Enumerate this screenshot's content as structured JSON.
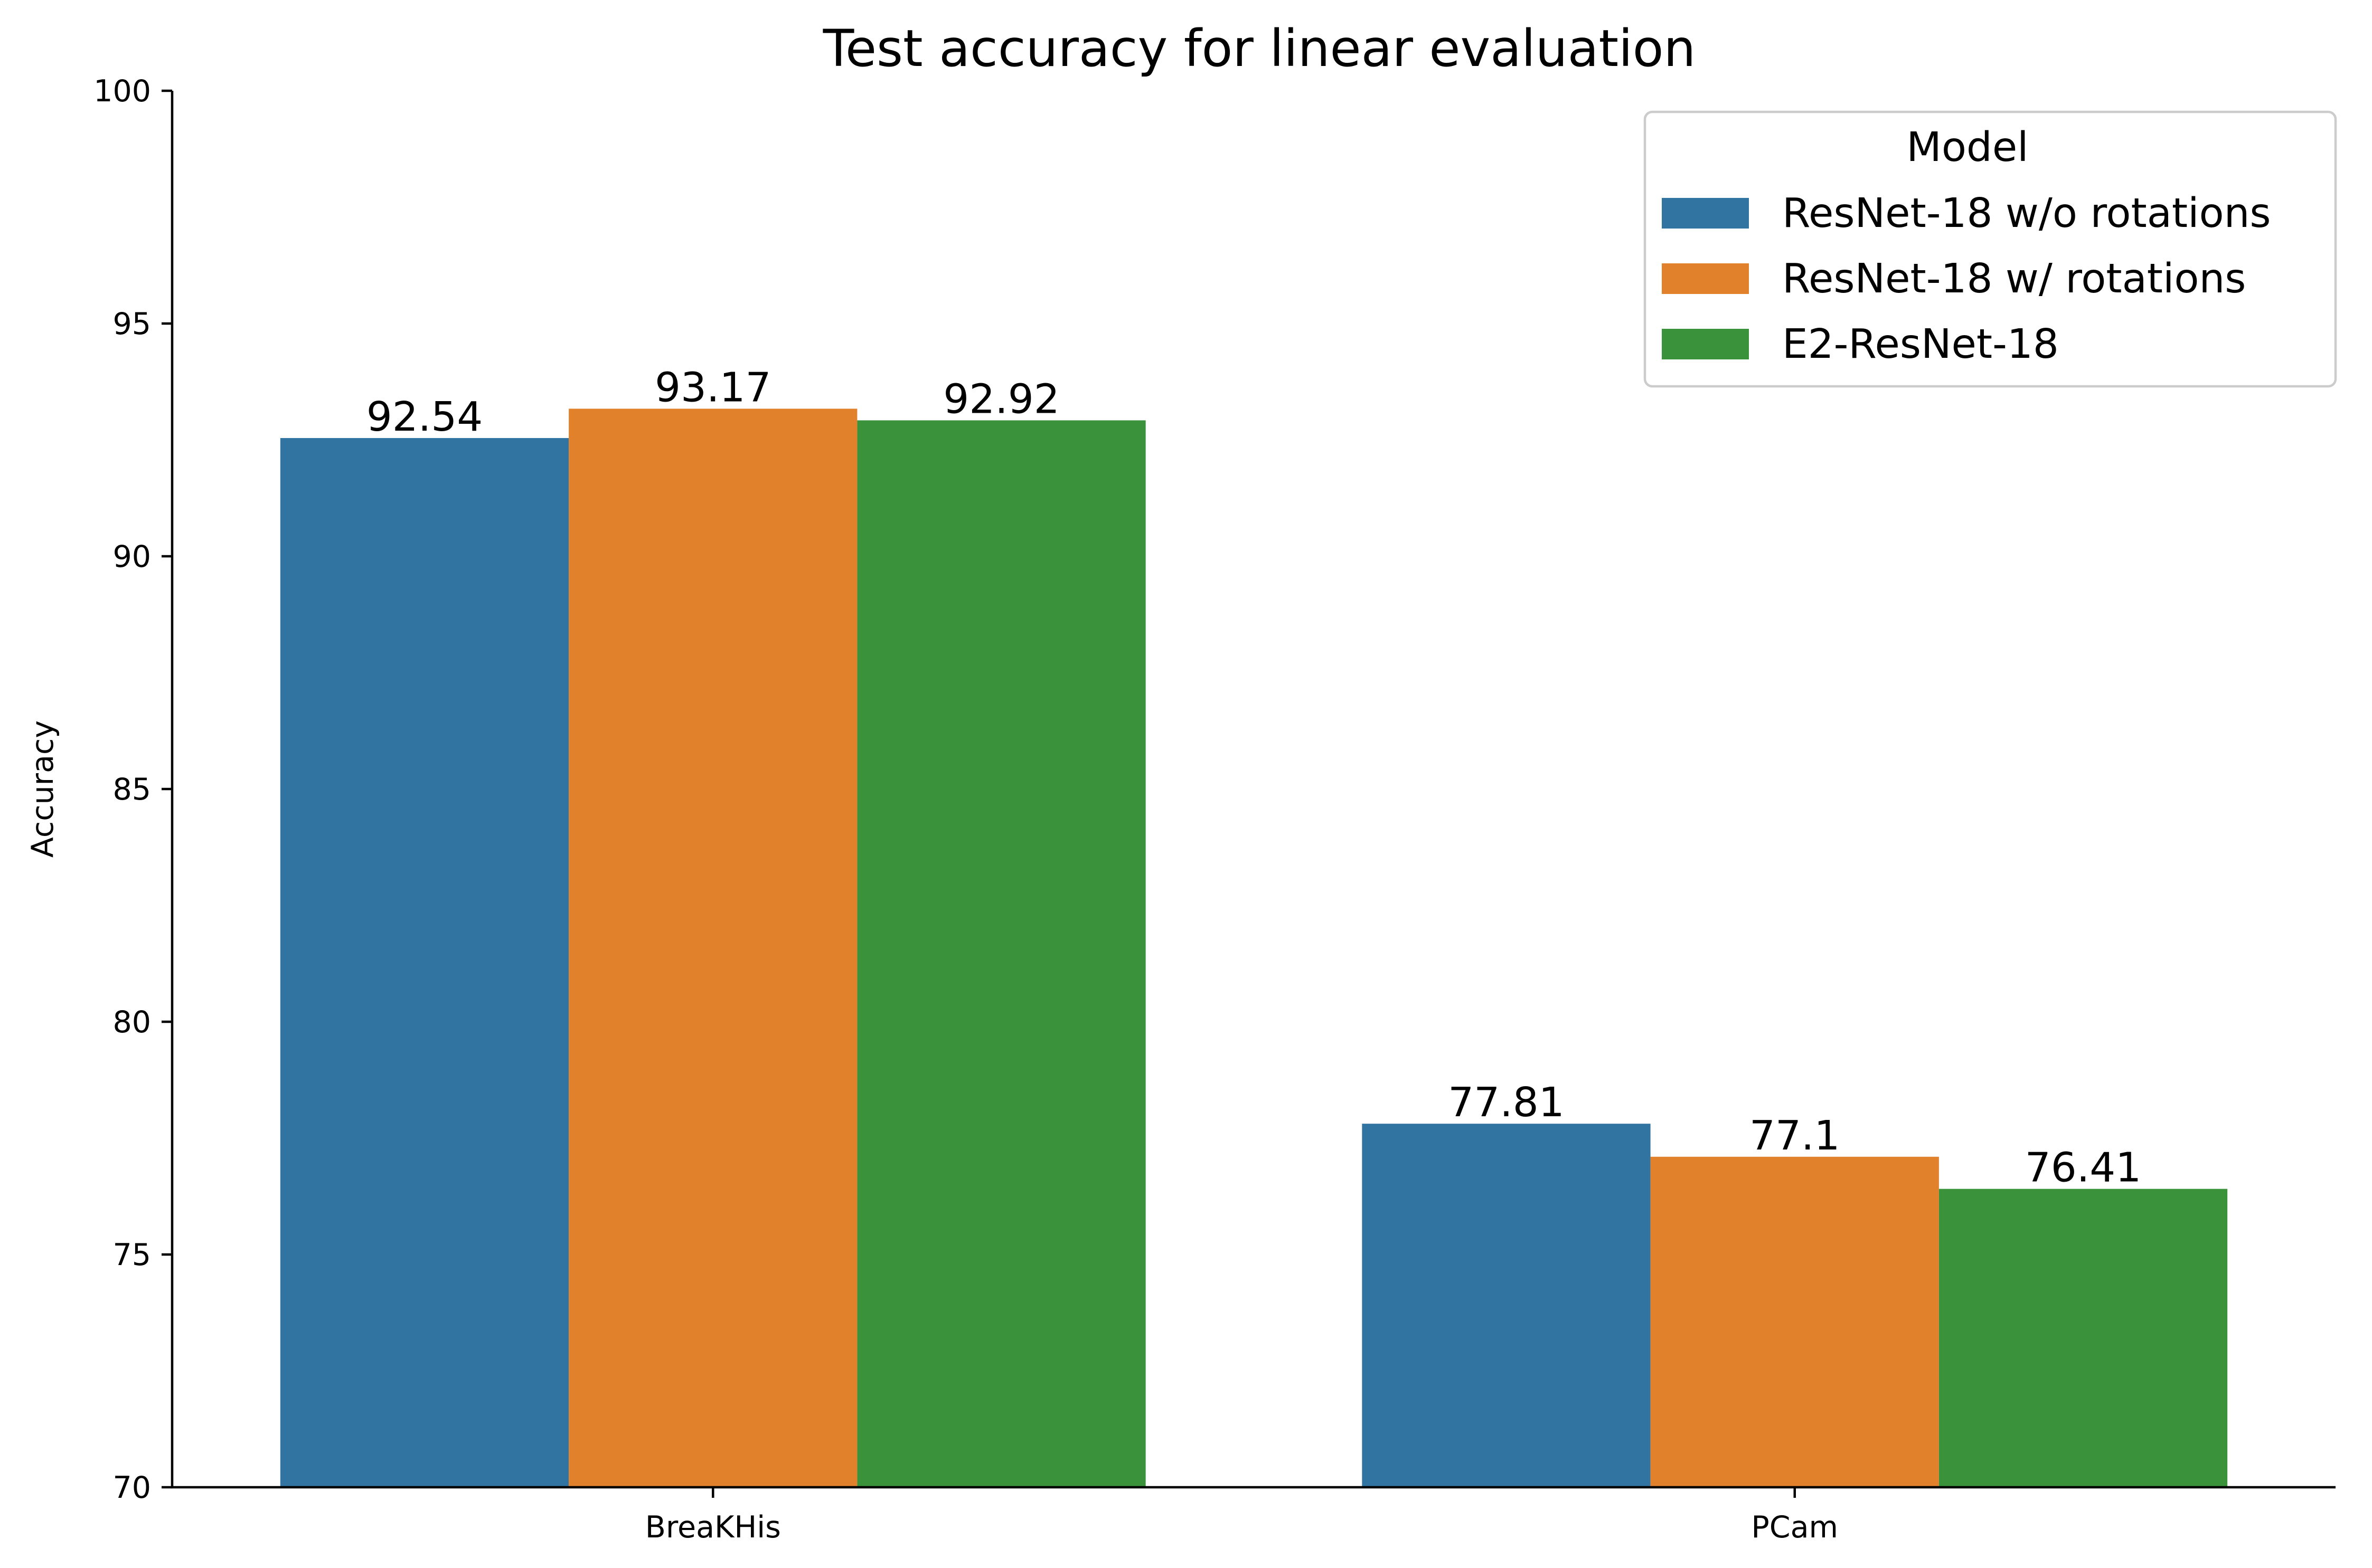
{
  "chart_data": {
    "type": "bar",
    "title": "Test accuracy for linear evaluation",
    "xlabel": "",
    "ylabel": "Accuracy",
    "ylim": [
      70,
      100
    ],
    "yticks": [
      70,
      75,
      80,
      85,
      90,
      95,
      100
    ],
    "grid": false,
    "categories": [
      "BreaKHis",
      "PCam"
    ],
    "legend": {
      "title": "Model",
      "placement": "top-right"
    },
    "series": [
      {
        "name": "ResNet-18 w/o rotations",
        "color": "#3274a1",
        "values": [
          92.54,
          77.81
        ],
        "labels": [
          "92.54",
          "77.81"
        ]
      },
      {
        "name": "ResNet-18 w/ rotations",
        "color": "#e1812c",
        "values": [
          93.17,
          77.1
        ],
        "labels": [
          "93.17",
          "77.1"
        ]
      },
      {
        "name": "E2-ResNet-18",
        "color": "#3a923a",
        "values": [
          92.92,
          76.41
        ],
        "labels": [
          "92.92",
          "76.41"
        ]
      }
    ]
  }
}
